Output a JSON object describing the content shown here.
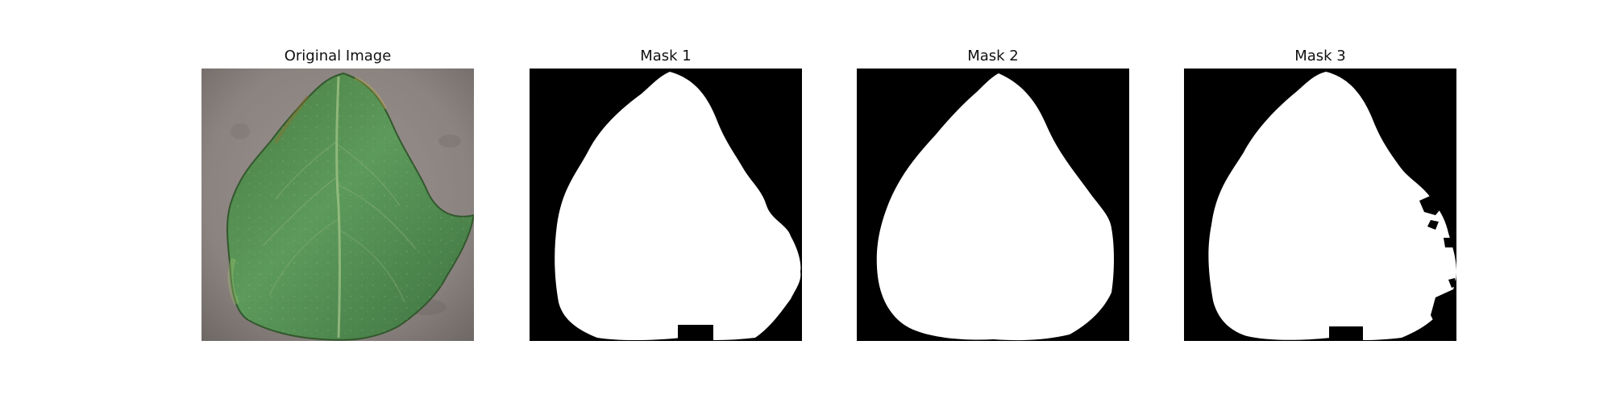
{
  "figure": {
    "panels": [
      {
        "title": "Original Image"
      },
      {
        "title": "Mask 1"
      },
      {
        "title": "Mask 2"
      },
      {
        "title": "Mask 3"
      }
    ]
  },
  "colors": {
    "background": "#ffffff",
    "mask_foreground": "#ffffff",
    "mask_background": "#000000",
    "leaf_green": "#4f8b4f",
    "ground_gray": "#8e8783"
  }
}
